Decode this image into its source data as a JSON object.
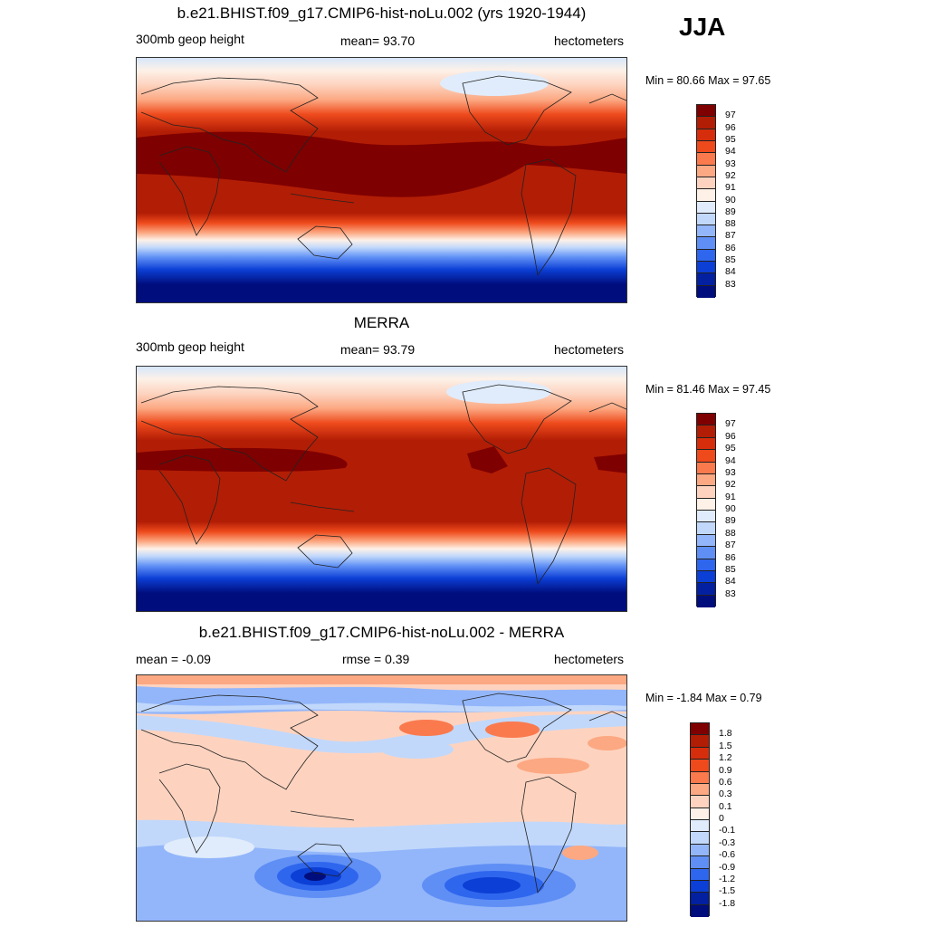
{
  "season": "JJA",
  "panels": [
    {
      "title": "b.e21.BHIST.f09_g17.CMIP6-hist-noLu.002 (yrs 1920-1944)",
      "left": "300mb geop height",
      "center": "mean=  93.70",
      "right": "hectometers",
      "minmax": "Min =  80.66 Max =  97.65",
      "levels": [
        "97",
        "96",
        "95",
        "94",
        "93",
        "92",
        "91",
        "90",
        "89",
        "88",
        "87",
        "86",
        "85",
        "84",
        "83"
      ],
      "colors": [
        "#7f0000",
        "#b21d05",
        "#d62e0c",
        "#ee4a1c",
        "#fa7a4e",
        "#fca882",
        "#fdd3bf",
        "#fdf1e8",
        "#e0ecfb",
        "#c1d8fb",
        "#93b6fa",
        "#5f8ff5",
        "#2f66ee",
        "#0c3fd5",
        "#0320a0",
        "#000d7d"
      ]
    },
    {
      "title": "MERRA",
      "left": "300mb geop height",
      "center": "mean=  93.79",
      "right": "hectometers",
      "minmax": "Min =  81.46 Max =  97.45",
      "levels": [
        "97",
        "96",
        "95",
        "94",
        "93",
        "92",
        "91",
        "90",
        "89",
        "88",
        "87",
        "86",
        "85",
        "84",
        "83"
      ],
      "colors": [
        "#7f0000",
        "#b21d05",
        "#d62e0c",
        "#ee4a1c",
        "#fa7a4e",
        "#fca882",
        "#fdd3bf",
        "#fdf1e8",
        "#e0ecfb",
        "#c1d8fb",
        "#93b6fa",
        "#5f8ff5",
        "#2f66ee",
        "#0c3fd5",
        "#0320a0",
        "#000d7d"
      ]
    },
    {
      "title": "b.e21.BHIST.f09_g17.CMIP6-hist-noLu.002 - MERRA",
      "left": "mean =  -0.09",
      "center": "rmse =   0.39",
      "right": "hectometers",
      "minmax": "Min =  -1.84 Max =   0.79",
      "levels": [
        "1.8",
        "1.5",
        "1.2",
        "0.9",
        "0.6",
        "0.3",
        "0.1",
        "0",
        "-0.1",
        "-0.3",
        "-0.6",
        "-0.9",
        "-1.2",
        "-1.5",
        "-1.8"
      ],
      "colors": [
        "#7f0000",
        "#b21d05",
        "#d62e0c",
        "#ee4a1c",
        "#fa7a4e",
        "#fca882",
        "#fdd3bf",
        "#fdf1e8",
        "#e0ecfb",
        "#c1d8fb",
        "#93b6fa",
        "#5f8ff5",
        "#2f66ee",
        "#0c3fd5",
        "#0320a0",
        "#000d7d"
      ]
    }
  ]
}
